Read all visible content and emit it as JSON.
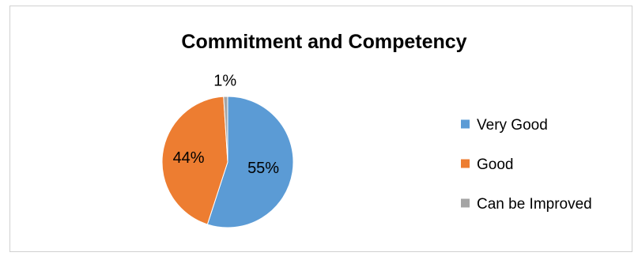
{
  "chart_data": {
    "type": "pie",
    "title": "Commitment and Competency",
    "slices": [
      {
        "label": "Very Good",
        "value": 55,
        "display": "55%",
        "color": "#5b9bd5"
      },
      {
        "label": "Good",
        "value": 44,
        "display": "44%",
        "color": "#ed7d31"
      },
      {
        "label": "Can be Improved",
        "value": 1,
        "display": "1%",
        "color": "#a5a5a5"
      }
    ],
    "legend_position": "right"
  }
}
